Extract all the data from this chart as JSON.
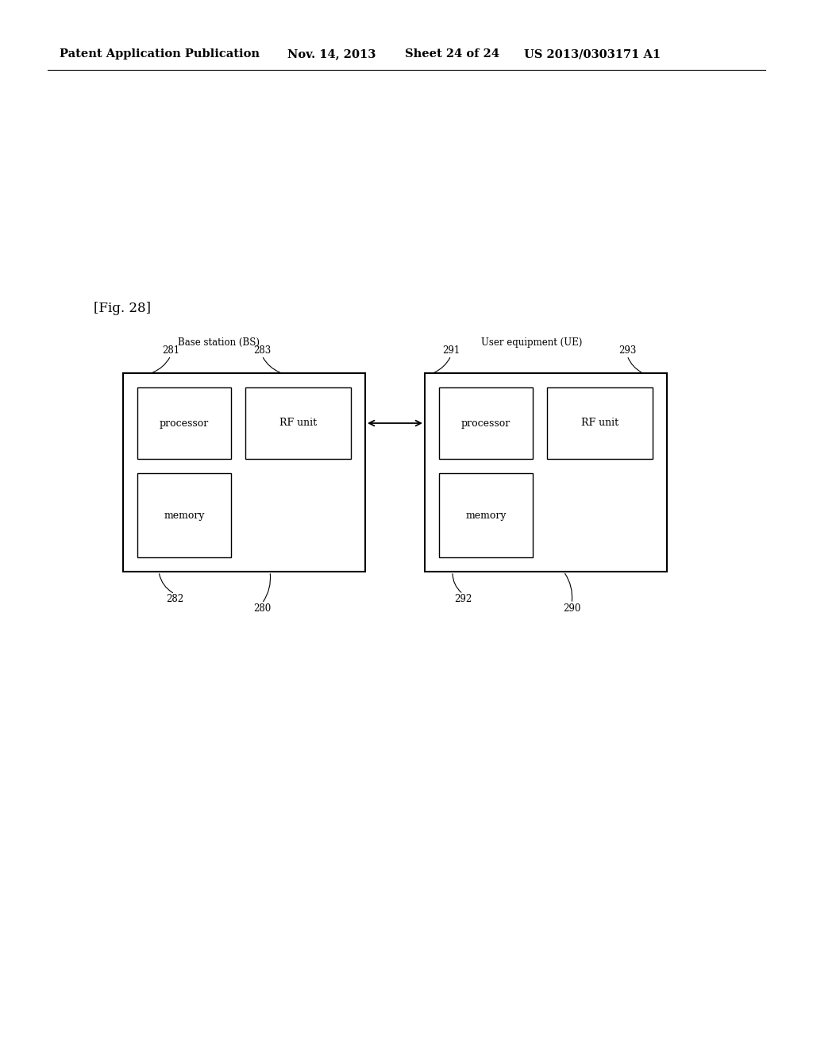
{
  "bg_color": "#ffffff",
  "header_text": "Patent Application Publication",
  "header_date": "Nov. 14, 2013",
  "header_sheet": "Sheet 24 of 24",
  "header_patent": "US 2013/0303171 A1",
  "fig_label": "[Fig. 28]",
  "bs_label": "Base station (BS)",
  "ue_label": "User equipment (UE)",
  "ref_281": "281",
  "ref_282": "282",
  "ref_283": "283",
  "ref_280": "280",
  "ref_291": "291",
  "ref_292": "292",
  "ref_293": "293",
  "ref_290": "290",
  "proc_label": "processor",
  "rf_label": "RF unit",
  "mem_label": "memory"
}
